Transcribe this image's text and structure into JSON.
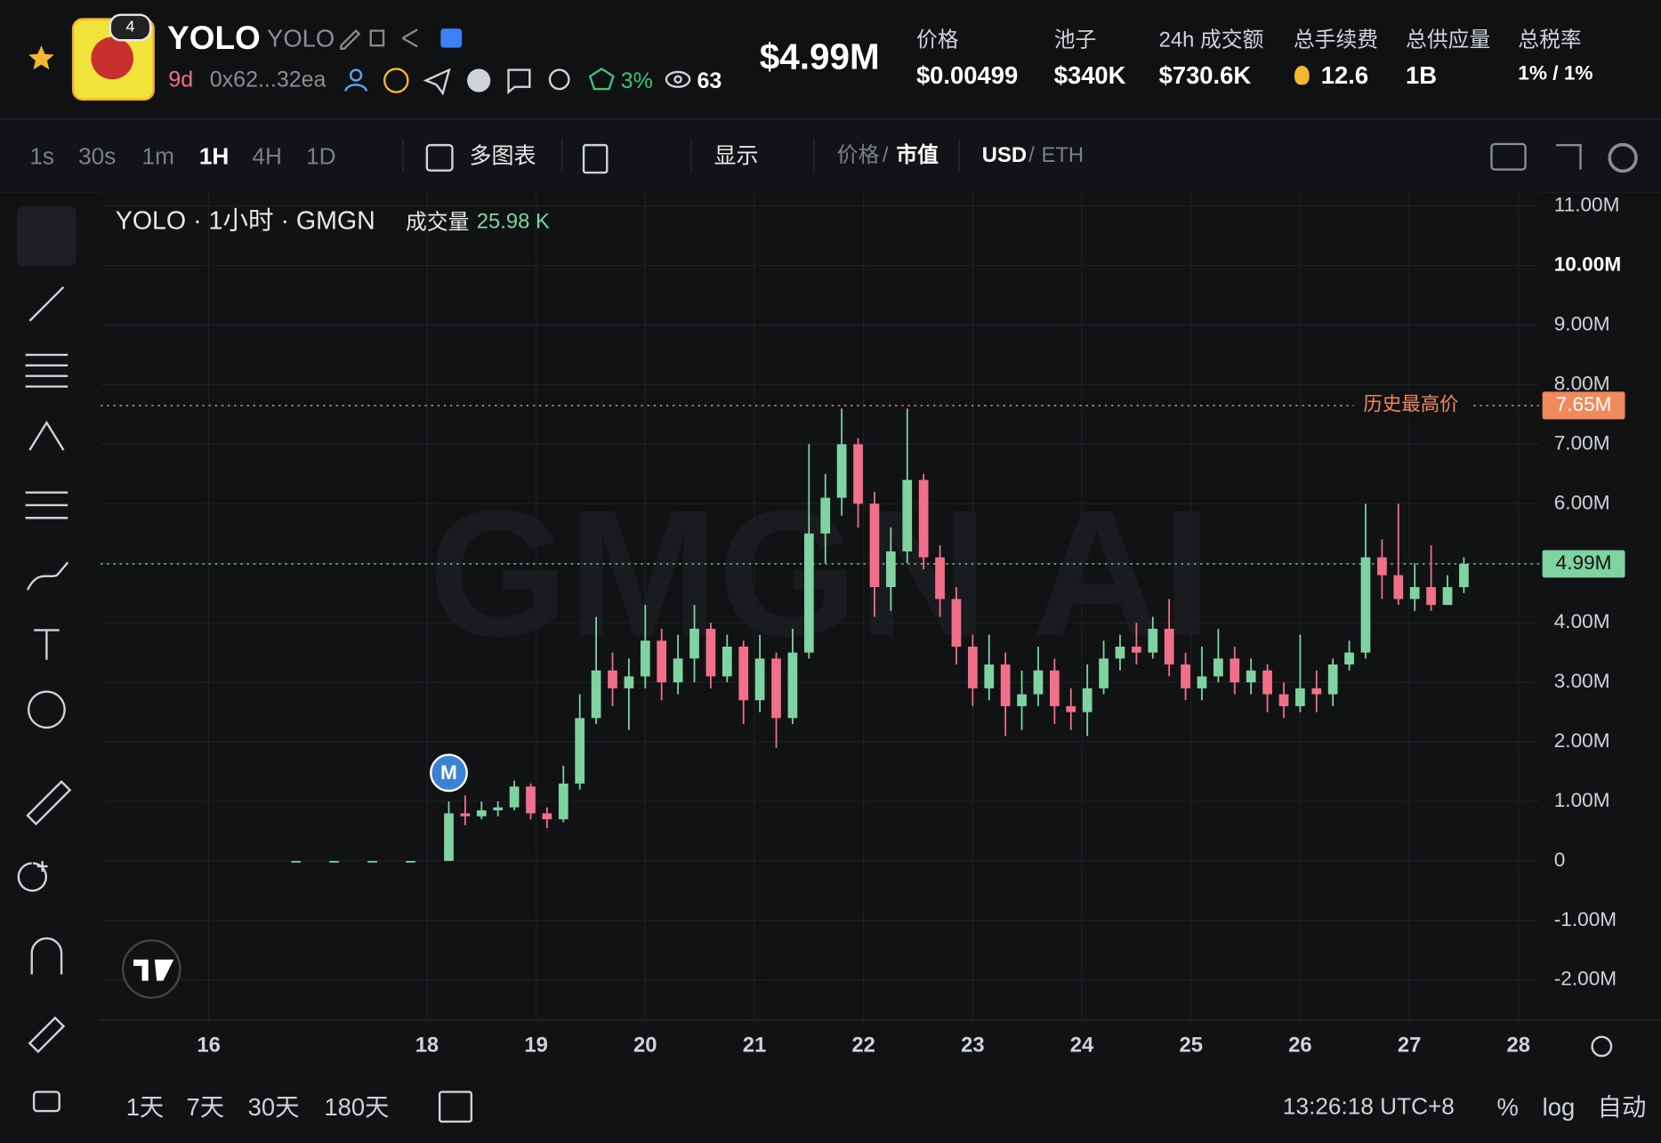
{
  "header": {
    "name": "YOLO",
    "symbol": "YOLO",
    "badge": "4",
    "age": "9d",
    "address": "0x62...32ea",
    "top10": "3%",
    "watchers": "63",
    "market_cap": "$4.99M",
    "stats": [
      {
        "label": "价格",
        "value": "$0.00499"
      },
      {
        "label": "池子",
        "value": "$340K"
      },
      {
        "label": "24h 成交额",
        "value": "$730.6K"
      },
      {
        "label": "总手续费",
        "value": "12.6"
      },
      {
        "label": "总供应量",
        "value": "1B"
      },
      {
        "label": "总税率",
        "value": "1% / 1%"
      }
    ]
  },
  "toolbar": {
    "intervals": [
      "1s",
      "30s",
      "1m",
      "1H",
      "4H",
      "1D"
    ],
    "active": "1H",
    "multi_chart": "多图表",
    "display": "显示",
    "mode": {
      "left": "价格",
      "sep": "/",
      "right": "市值"
    },
    "currency": {
      "left": "USD",
      "sep": "/",
      "right": "ETH"
    }
  },
  "footer": {
    "ranges": [
      "1天",
      "7天",
      "30天",
      "180天"
    ],
    "time": "13:26:18 UTC+8",
    "percent": "%",
    "log": "log",
    "auto": "自动"
  },
  "chart_data": {
    "type": "candlestick",
    "title": "YOLO · 1小时 · GMGN",
    "volume_label": "成交量",
    "volume": "25.98 K",
    "watermark": "GMGN AI",
    "marker": {
      "label": "M",
      "x": 18.2,
      "y": 1.48
    },
    "up_color": "#7fd3a0",
    "down_color": "#f0708a",
    "grid": true,
    "xlim": [
      15.01,
      28.19
    ],
    "xticks": [
      16,
      18,
      19,
      20,
      21,
      22,
      23,
      24,
      25,
      26,
      27,
      28
    ],
    "ylim": [
      -2.67,
      11.17
    ],
    "yticks": [
      {
        "value": -2,
        "label": "-2.00M"
      },
      {
        "value": -1,
        "label": "-1.00M"
      },
      0,
      {
        "value": 1,
        "label": "1.00M"
      },
      {
        "value": 2,
        "label": "2.00M"
      },
      {
        "value": 3,
        "label": "3.00M"
      },
      {
        "value": 4,
        "label": "4.00M"
      },
      {
        "value": 5,
        "label": "5.00M"
      },
      {
        "value": 6,
        "label": "6.00M"
      },
      {
        "value": 7,
        "label": "7.00M"
      },
      {
        "value": 8,
        "label": "8.00M"
      },
      {
        "value": 9,
        "label": "9.00M"
      },
      {
        "value": 10,
        "label": "10.00M"
      },
      {
        "value": 11,
        "label": "11.00M"
      }
    ],
    "ath": {
      "value": 7.65,
      "value_label": "7.65M",
      "label": "历史最高价",
      "color": "#f08a5d"
    },
    "last": {
      "value": 4.99,
      "value_label": "4.99M",
      "color": "#7fd3a0"
    },
    "candles": {
      "x": [
        16.8,
        17.15,
        17.5,
        17.85,
        18.2,
        18.35,
        18.5,
        18.65,
        18.8,
        18.95,
        19.1,
        19.25,
        19.4,
        19.55,
        19.7,
        19.85,
        20.0,
        20.15,
        20.3,
        20.45,
        20.6,
        20.75,
        20.9,
        21.05,
        21.2,
        21.35,
        21.5,
        21.65,
        21.8,
        21.95,
        22.1,
        22.25,
        22.4,
        22.55,
        22.7,
        22.85,
        23.0,
        23.15,
        23.3,
        23.45,
        23.6,
        23.75,
        23.9,
        24.05,
        24.2,
        24.35,
        24.5,
        24.65,
        24.8,
        24.95,
        25.1,
        25.25,
        25.4,
        25.55,
        25.7,
        25.85,
        26.0,
        26.15,
        26.3,
        26.45,
        26.6,
        26.75,
        26.9,
        27.05,
        27.2,
        27.35,
        27.5
      ],
      "open": [
        0,
        0,
        0,
        0,
        0,
        0.8,
        0.75,
        0.85,
        0.9,
        1.25,
        0.8,
        0.7,
        1.3,
        2.4,
        3.2,
        2.9,
        3.1,
        3.7,
        3.0,
        3.4,
        3.9,
        3.1,
        3.6,
        2.7,
        3.4,
        2.4,
        3.5,
        5.5,
        6.1,
        7.0,
        6.0,
        4.6,
        5.2,
        6.4,
        5.1,
        4.4,
        3.6,
        2.9,
        3.3,
        2.6,
        2.8,
        3.2,
        2.6,
        2.5,
        2.9,
        3.4,
        3.6,
        3.5,
        3.9,
        3.3,
        2.9,
        3.1,
        3.4,
        3.0,
        3.2,
        2.8,
        2.6,
        2.9,
        2.8,
        3.3,
        3.5,
        5.1,
        4.8,
        4.4,
        4.6,
        4.3,
        4.6
      ],
      "high": [
        0,
        0,
        0,
        0,
        1.0,
        1.1,
        1.0,
        1.0,
        1.35,
        1.3,
        0.9,
        1.6,
        2.8,
        4.1,
        3.5,
        3.4,
        4.3,
        3.9,
        3.8,
        4.3,
        4.0,
        3.8,
        3.7,
        3.8,
        3.5,
        3.9,
        7.0,
        6.5,
        7.6,
        7.1,
        6.2,
        5.6,
        7.6,
        6.5,
        5.3,
        4.6,
        3.8,
        3.8,
        3.5,
        3.2,
        3.6,
        3.4,
        2.9,
        3.3,
        3.7,
        3.8,
        4.0,
        4.1,
        4.4,
        3.5,
        3.6,
        3.9,
        3.6,
        3.4,
        3.3,
        3.0,
        3.8,
        3.2,
        3.4,
        3.7,
        6.0,
        5.4,
        6.0,
        5.0,
        5.3,
        4.8,
        5.1
      ],
      "low": [
        0,
        0,
        0,
        0,
        0,
        0.6,
        0.7,
        0.75,
        0.85,
        0.7,
        0.55,
        0.65,
        1.2,
        2.3,
        2.6,
        2.2,
        2.9,
        2.7,
        2.8,
        3.0,
        2.9,
        3.0,
        2.3,
        2.5,
        1.9,
        2.3,
        3.4,
        5.0,
        5.8,
        5.6,
        4.1,
        4.2,
        5.0,
        4.9,
        4.1,
        3.3,
        2.6,
        2.7,
        2.1,
        2.2,
        2.6,
        2.3,
        2.2,
        2.1,
        2.8,
        3.2,
        3.3,
        3.4,
        3.1,
        2.7,
        2.7,
        3.0,
        2.8,
        2.8,
        2.5,
        2.4,
        2.5,
        2.5,
        2.6,
        3.2,
        3.4,
        4.4,
        4.3,
        4.2,
        4.2,
        4.3,
        4.5
      ],
      "close": [
        0,
        0,
        0,
        0,
        0.8,
        0.75,
        0.85,
        0.9,
        1.25,
        0.8,
        0.7,
        1.3,
        2.4,
        3.2,
        2.9,
        3.1,
        3.7,
        3.0,
        3.4,
        3.9,
        3.1,
        3.6,
        2.7,
        3.4,
        2.4,
        3.5,
        5.5,
        6.1,
        7.0,
        6.0,
        4.6,
        5.2,
        6.4,
        5.1,
        4.4,
        3.6,
        2.9,
        3.3,
        2.6,
        2.8,
        3.2,
        2.6,
        2.5,
        2.9,
        3.4,
        3.6,
        3.5,
        3.9,
        3.3,
        2.9,
        3.1,
        3.4,
        3.0,
        3.2,
        2.8,
        2.6,
        2.9,
        2.8,
        3.3,
        3.5,
        5.1,
        4.8,
        4.4,
        4.6,
        4.3,
        4.6,
        4.99
      ]
    }
  }
}
